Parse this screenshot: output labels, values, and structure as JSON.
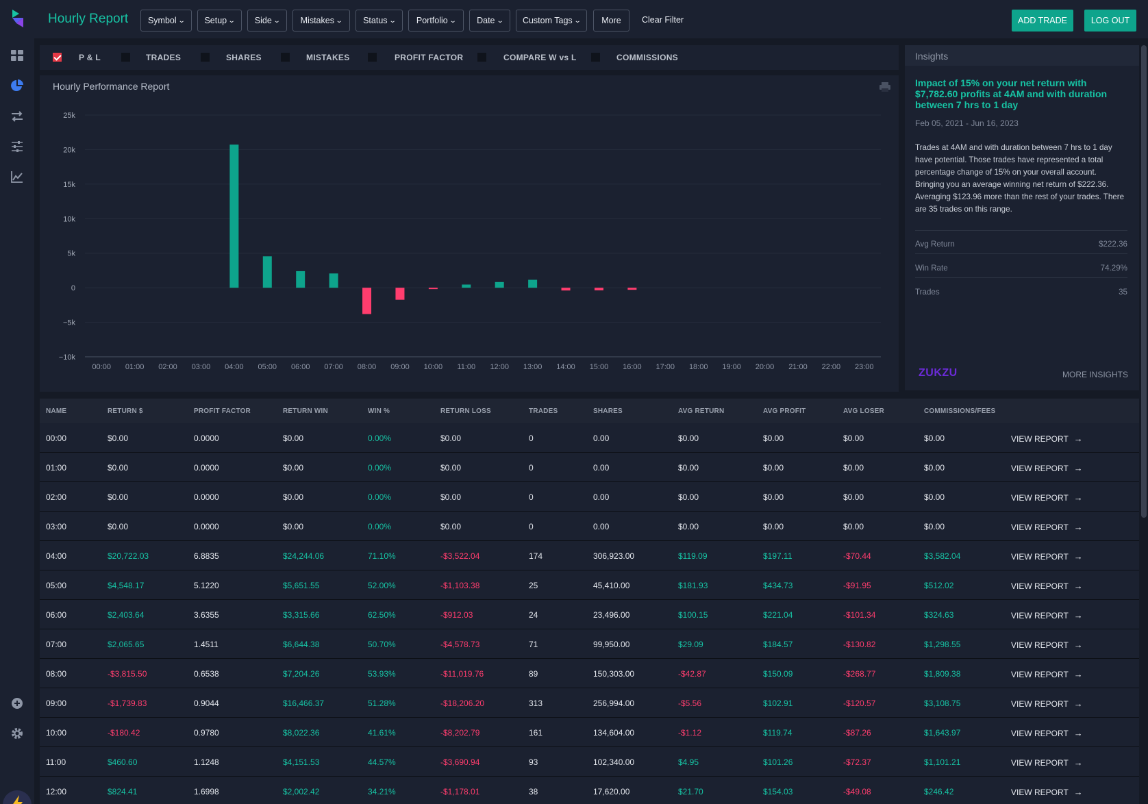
{
  "header": {
    "title": "Hourly Report",
    "filters": [
      "Symbol",
      "Setup",
      "Side",
      "Mistakes",
      "Status",
      "Portfolio",
      "Date",
      "Custom Tags"
    ],
    "more_label": "More",
    "clear_filter_label": "Clear Filter",
    "add_trade_label": "ADD TRADE",
    "logout_label": "LOG OUT"
  },
  "sidebar": {
    "icons": [
      "dashboard-icon",
      "pie-chart-icon",
      "transfer-icon",
      "sliders-icon",
      "line-chart-icon",
      "plus-circle-icon",
      "gear-icon",
      "bolt-icon"
    ]
  },
  "metrics": [
    {
      "label": "P & L",
      "checked": true
    },
    {
      "label": "TRADES",
      "checked": false
    },
    {
      "label": "SHARES",
      "checked": false
    },
    {
      "label": "MISTAKES",
      "checked": false
    },
    {
      "label": "PROFIT FACTOR",
      "checked": false
    },
    {
      "label": "COMPARE W vs L",
      "checked": false
    },
    {
      "label": "COMMISSIONS",
      "checked": false
    }
  ],
  "chart_panel": {
    "title": "Hourly Performance Report"
  },
  "chart_data": {
    "type": "bar",
    "title": "Hourly Performance Report",
    "categories": [
      "00:00",
      "01:00",
      "02:00",
      "03:00",
      "04:00",
      "05:00",
      "06:00",
      "07:00",
      "08:00",
      "09:00",
      "10:00",
      "11:00",
      "12:00",
      "13:00",
      "14:00",
      "15:00",
      "16:00",
      "17:00",
      "18:00",
      "19:00",
      "20:00",
      "21:00",
      "22:00",
      "23:00"
    ],
    "values": [
      0,
      0,
      0,
      0,
      20722.03,
      4548.17,
      2403.64,
      2065.65,
      -3815.5,
      -1739.83,
      -180.42,
      460.6,
      824.41,
      1150,
      -400,
      -380,
      -300,
      0,
      0,
      0,
      0,
      0,
      0,
      0
    ],
    "y_ticks": [
      "25k",
      "20k",
      "15k",
      "10k",
      "5k",
      "0",
      "−5k",
      "−10k"
    ],
    "ylim": [
      -10000,
      25000
    ],
    "positive_color": "#0ea48c",
    "negative_color": "#ff3d6e",
    "grid": true
  },
  "insights": {
    "title": "Insights",
    "headline": "Impact of 15% on your net return with $7,782.60 profits at 4AM and with duration between 7 hrs to 1 day",
    "date_range": "Feb 05, 2021 - Jun 16, 2023",
    "body": "Trades at 4AM and with duration between 7 hrs to 1 day have potential. Those trades have represented a total percentage change of 15% on your overall account. Bringing you an average winning net return of $222.36. Averaging $123.96 more than the rest of your trades. There are 35 trades on this range.",
    "stats": [
      {
        "label": "Avg Return",
        "value": "$222.36"
      },
      {
        "label": "Win Rate",
        "value": "74.29%"
      },
      {
        "label": "Trades",
        "value": "35"
      }
    ],
    "brand": "ZUKZU",
    "more_label": "MORE INSIGHTS"
  },
  "table": {
    "headers": [
      "NAME",
      "RETURN $",
      "PROFIT FACTOR",
      "RETURN WIN",
      "WIN %",
      "RETURN LOSS",
      "TRADES",
      "SHARES",
      "AVG RETURN",
      "AVG PROFIT",
      "AVG LOSER",
      "COMMISSIONS/FEES"
    ],
    "view_label": "VIEW REPORT",
    "rows": [
      [
        "00:00",
        "$0.00",
        "0.0000",
        "$0.00",
        "0.00%",
        "$0.00",
        "0",
        "0.00",
        "$0.00",
        "$0.00",
        "$0.00",
        "$0.00"
      ],
      [
        "01:00",
        "$0.00",
        "0.0000",
        "$0.00",
        "0.00%",
        "$0.00",
        "0",
        "0.00",
        "$0.00",
        "$0.00",
        "$0.00",
        "$0.00"
      ],
      [
        "02:00",
        "$0.00",
        "0.0000",
        "$0.00",
        "0.00%",
        "$0.00",
        "0",
        "0.00",
        "$0.00",
        "$0.00",
        "$0.00",
        "$0.00"
      ],
      [
        "03:00",
        "$0.00",
        "0.0000",
        "$0.00",
        "0.00%",
        "$0.00",
        "0",
        "0.00",
        "$0.00",
        "$0.00",
        "$0.00",
        "$0.00"
      ],
      [
        "04:00",
        "$20,722.03",
        "6.8835",
        "$24,244.06",
        "71.10%",
        "-$3,522.04",
        "174",
        "306,923.00",
        "$119.09",
        "$197.11",
        "-$70.44",
        "$3,582.04"
      ],
      [
        "05:00",
        "$4,548.17",
        "5.1220",
        "$5,651.55",
        "52.00%",
        "-$1,103.38",
        "25",
        "45,410.00",
        "$181.93",
        "$434.73",
        "-$91.95",
        "$512.02"
      ],
      [
        "06:00",
        "$2,403.64",
        "3.6355",
        "$3,315.66",
        "62.50%",
        "-$912.03",
        "24",
        "23,496.00",
        "$100.15",
        "$221.04",
        "-$101.34",
        "$324.63"
      ],
      [
        "07:00",
        "$2,065.65",
        "1.4511",
        "$6,644.38",
        "50.70%",
        "-$4,578.73",
        "71",
        "99,950.00",
        "$29.09",
        "$184.57",
        "-$130.82",
        "$1,298.55"
      ],
      [
        "08:00",
        "-$3,815.50",
        "0.6538",
        "$7,204.26",
        "53.93%",
        "-$11,019.76",
        "89",
        "150,303.00",
        "-$42.87",
        "$150.09",
        "-$268.77",
        "$1,809.38"
      ],
      [
        "09:00",
        "-$1,739.83",
        "0.9044",
        "$16,466.37",
        "51.28%",
        "-$18,206.20",
        "313",
        "256,994.00",
        "-$5.56",
        "$102.91",
        "-$120.57",
        "$3,108.75"
      ],
      [
        "10:00",
        "-$180.42",
        "0.9780",
        "$8,022.36",
        "41.61%",
        "-$8,202.79",
        "161",
        "134,604.00",
        "-$1.12",
        "$119.74",
        "-$87.26",
        "$1,643.97"
      ],
      [
        "11:00",
        "$460.60",
        "1.1248",
        "$4,151.53",
        "44.57%",
        "-$3,690.94",
        "93",
        "102,340.00",
        "$4.95",
        "$101.26",
        "-$72.37",
        "$1,101.21"
      ],
      [
        "12:00",
        "$824.41",
        "1.6998",
        "$2,002.42",
        "34.21%",
        "-$1,178.01",
        "38",
        "17,620.00",
        "$21.70",
        "$154.03",
        "-$49.08",
        "$246.42"
      ]
    ]
  }
}
